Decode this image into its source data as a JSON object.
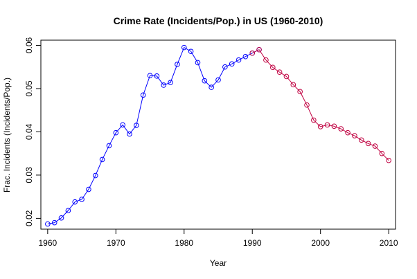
{
  "chart_data": {
    "type": "line",
    "title": "Crime Rate (Incidents/Pop.) in US (1960-2010)",
    "xlabel": "Year",
    "ylabel": "Frac. Incidents (Incidents/Pop.)",
    "xlim": [
      1959,
      2011
    ],
    "ylim": [
      0.0175,
      0.0612
    ],
    "x_ticks": [
      1960,
      1970,
      1980,
      1990,
      2000,
      2010
    ],
    "y_ticks": [
      0.02,
      0.03,
      0.04,
      0.05,
      0.06
    ],
    "y_ticks_rotated": true,
    "grid": false,
    "legend": "none",
    "marker": "open circle",
    "series": [
      {
        "color": "#0000ff",
        "x": [
          1960,
          1961,
          1962,
          1963,
          1964,
          1965,
          1966,
          1967,
          1968,
          1969,
          1970,
          1971,
          1972,
          1973,
          1974,
          1975,
          1976,
          1977,
          1978,
          1979,
          1980,
          1981,
          1982,
          1983,
          1984,
          1985,
          1986,
          1987,
          1988,
          1989,
          1990,
          1991
        ],
        "values": [
          0.0187,
          0.019,
          0.0201,
          0.0218,
          0.0238,
          0.0244,
          0.0267,
          0.0299,
          0.0336,
          0.0368,
          0.0398,
          0.0416,
          0.0395,
          0.0415,
          0.0485,
          0.053,
          0.0529,
          0.0508,
          0.0514,
          0.0556,
          0.0595,
          0.0586,
          0.056,
          0.0518,
          0.0503,
          0.052,
          0.055,
          0.0557,
          0.0566,
          0.0574,
          0.0582,
          0.059
        ]
      },
      {
        "color": "#c00040",
        "x": [
          1990,
          1991,
          1992,
          1993,
          1994,
          1995,
          1996,
          1997,
          1998,
          1999,
          2000,
          2001,
          2002,
          2003,
          2004,
          2005,
          2006,
          2007,
          2008,
          2009,
          2010
        ],
        "values": [
          0.0582,
          0.059,
          0.0566,
          0.0549,
          0.0538,
          0.0528,
          0.0509,
          0.0493,
          0.0462,
          0.0427,
          0.0412,
          0.0416,
          0.0413,
          0.0407,
          0.0398,
          0.0391,
          0.0381,
          0.0373,
          0.0367,
          0.035,
          0.0334
        ]
      }
    ]
  }
}
